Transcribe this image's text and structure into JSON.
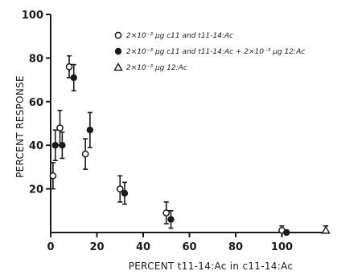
{
  "chart_data": {
    "type": "scatter",
    "title": "",
    "xlabel": "PERCENT t11-14:Ac in c11-14:Ac",
    "ylabel": "PERCENT RESPONSE",
    "xlim": [
      0,
      120
    ],
    "ylim": [
      0,
      100
    ],
    "x_ticks": [
      "0",
      "20",
      "40",
      "60",
      "80",
      "100"
    ],
    "y_ticks": [
      "20",
      "40",
      "60",
      "80",
      "100"
    ],
    "grid": false,
    "legend_position": "top-right",
    "series": [
      {
        "name": "2×10⁻³ µg c11 and t11-14:Ac",
        "marker": "open-circle",
        "points": [
          {
            "x": 1,
            "y": 26,
            "err": 6
          },
          {
            "x": 4,
            "y": 48,
            "err": 8
          },
          {
            "x": 8,
            "y": 76,
            "err": 5
          },
          {
            "x": 15,
            "y": 36,
            "err": 7
          },
          {
            "x": 30,
            "y": 20,
            "err": 6
          },
          {
            "x": 50,
            "y": 9,
            "err": 5
          },
          {
            "x": 100,
            "y": 1,
            "err": 2
          }
        ]
      },
      {
        "name": "2×10⁻³ µg c11 and t11-14:Ac + 2×10⁻³ µg 12:Ac",
        "marker": "filled-circle",
        "points": [
          {
            "x": 2,
            "y": 40,
            "err": 7
          },
          {
            "x": 5,
            "y": 40,
            "err": 6
          },
          {
            "x": 10,
            "y": 71,
            "err": 6
          },
          {
            "x": 17,
            "y": 47,
            "err": 8
          },
          {
            "x": 32,
            "y": 18,
            "err": 5
          },
          {
            "x": 52,
            "y": 6,
            "err": 4
          },
          {
            "x": 102,
            "y": 0,
            "err": 1
          }
        ]
      },
      {
        "name": "2×10⁻³ µg 12:Ac",
        "marker": "open-triangle",
        "points": [
          {
            "x": 119,
            "y": 1,
            "err": 2
          }
        ]
      }
    ]
  }
}
